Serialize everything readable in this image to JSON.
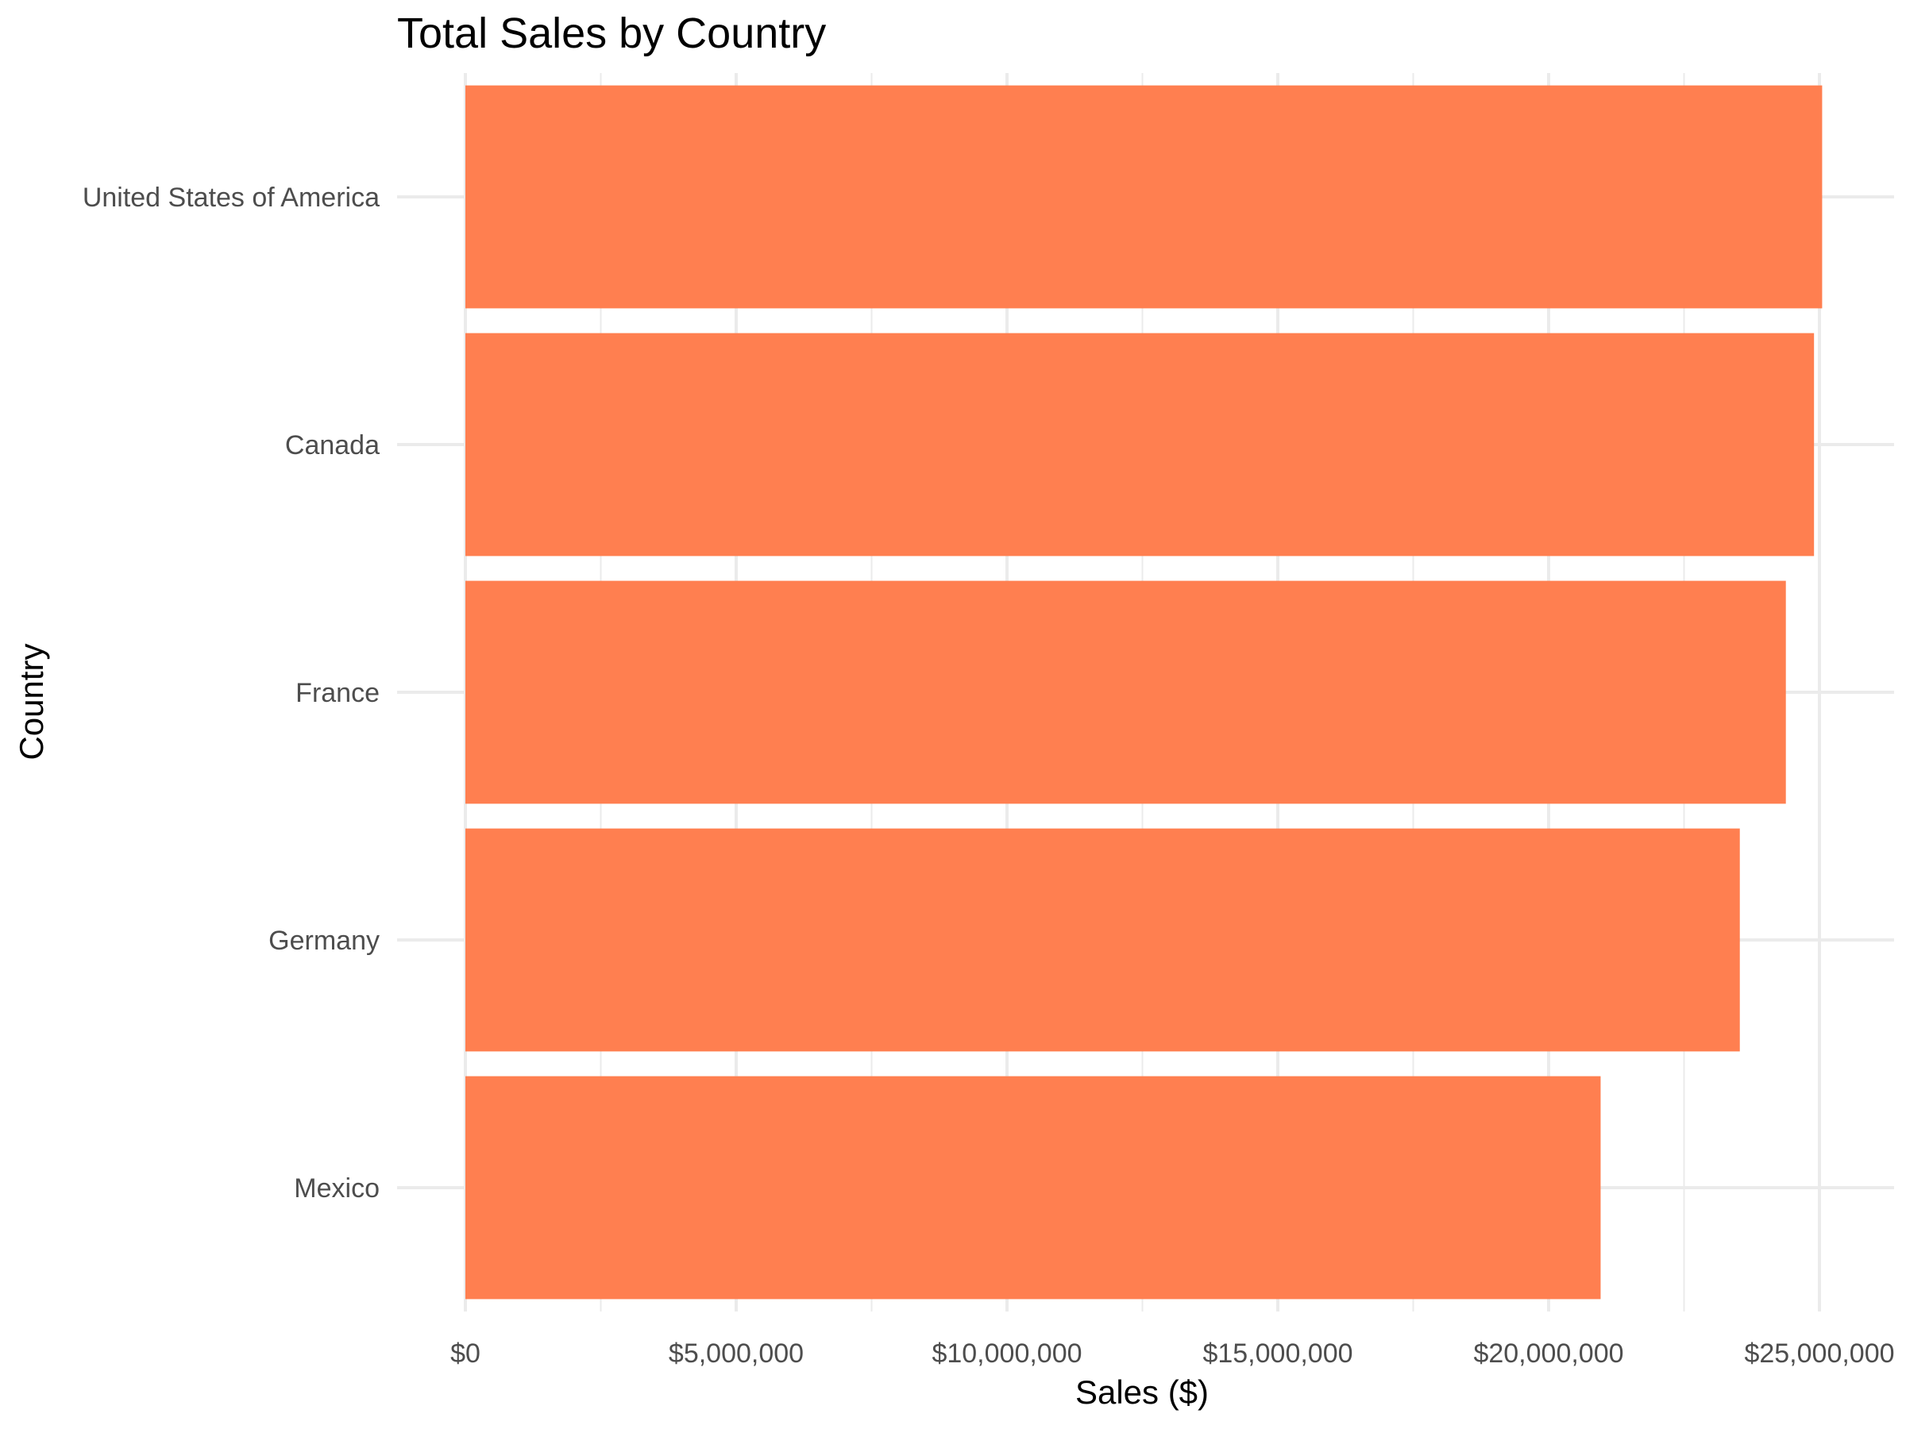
{
  "chart_data": {
    "type": "bar",
    "orientation": "horizontal",
    "title": "Total Sales by Country",
    "xlabel": "Sales ($)",
    "ylabel": "Country",
    "categories": [
      "United States of America",
      "Canada",
      "France",
      "Germany",
      "Mexico"
    ],
    "values": [
      25050000,
      24900000,
      24380000,
      23530000,
      20960000
    ],
    "xlim": [
      0,
      26000000
    ],
    "x_ticks": [
      0,
      5000000,
      10000000,
      15000000,
      20000000,
      25000000
    ],
    "x_tick_labels": [
      "$0",
      "$5,000,000",
      "$10,000,000",
      "$15,000,000",
      "$20,000,000",
      "$25,000,000"
    ],
    "grid": true,
    "legend": "none",
    "bar_color": "#ff7f50",
    "grid_color": "#ebebeb"
  }
}
